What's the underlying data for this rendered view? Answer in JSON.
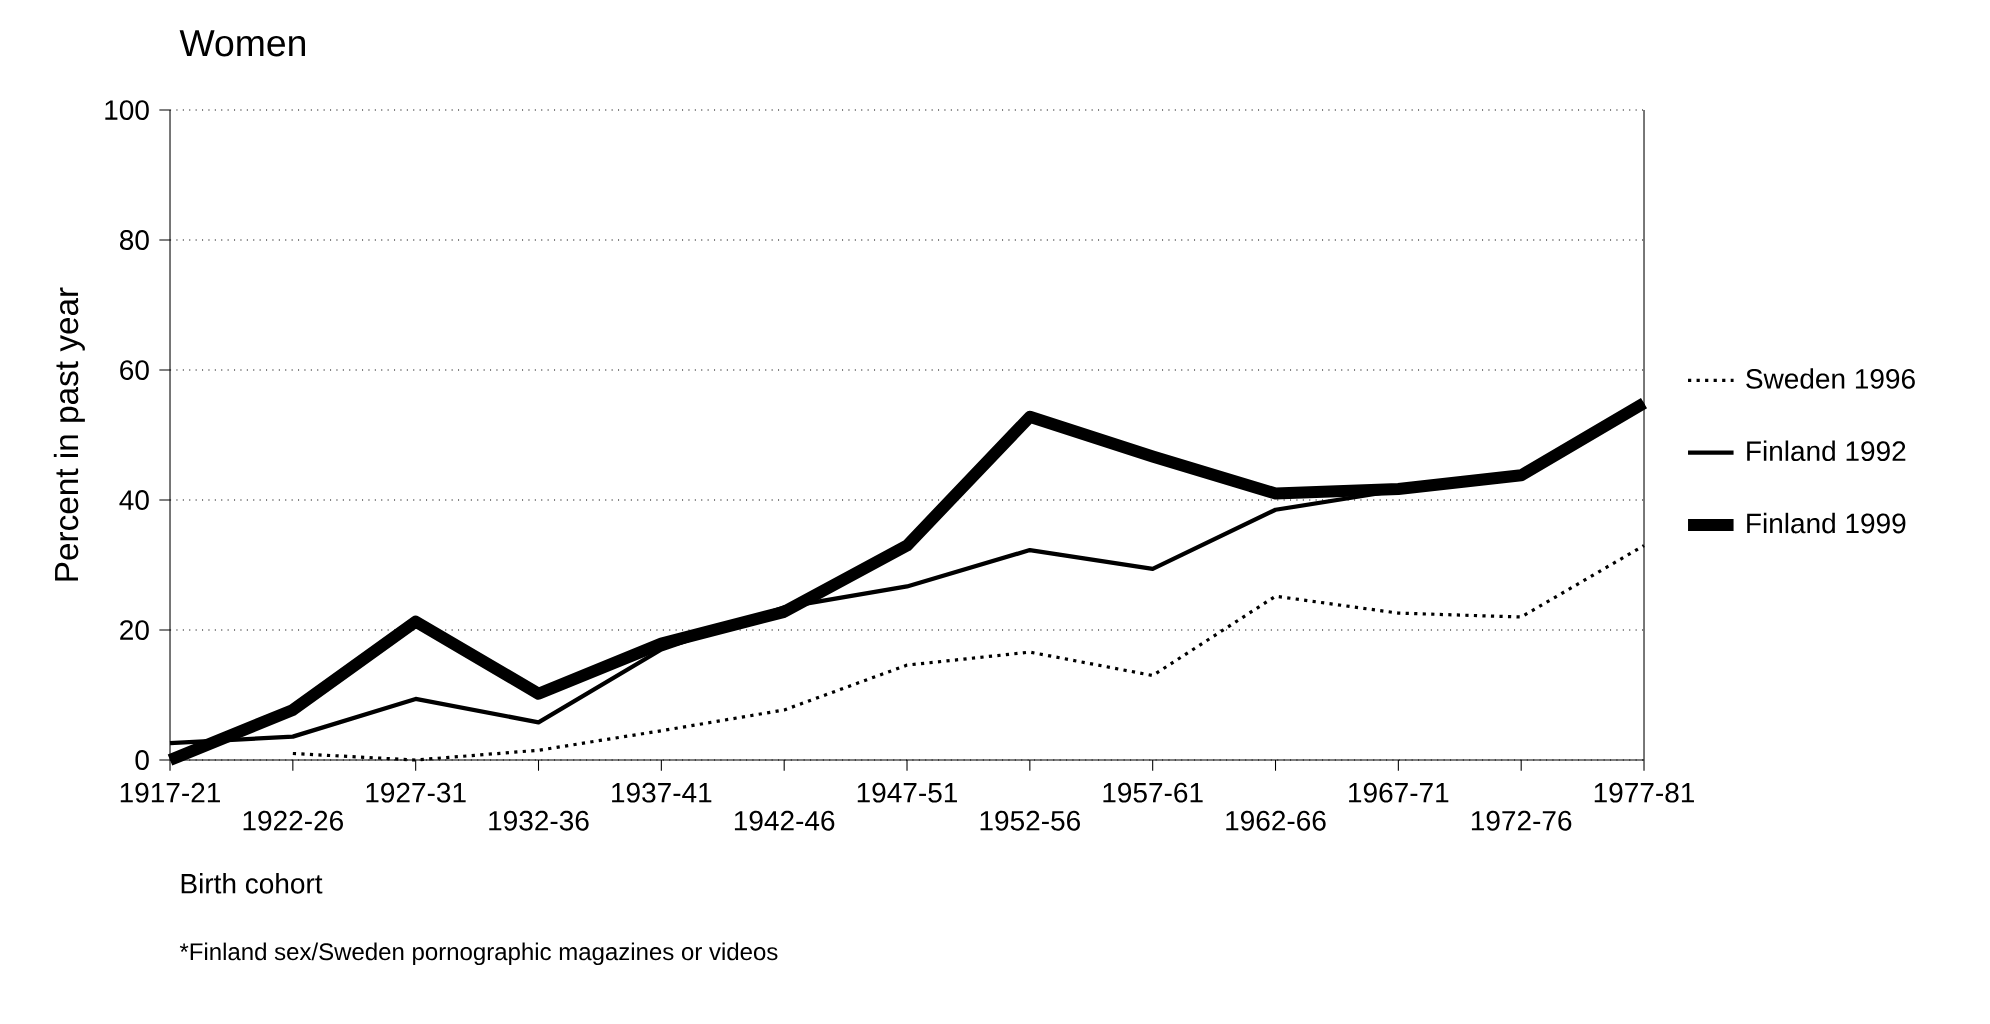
{
  "chart_data": {
    "type": "line",
    "title": "Women",
    "xlabel": "Birth cohort",
    "ylabel": "Percent in past year",
    "categories": [
      "1917-21",
      "1922-26",
      "1927-31",
      "1932-36",
      "1937-41",
      "1942-46",
      "1947-51",
      "1952-56",
      "1957-61",
      "1962-66",
      "1967-71",
      "1972-76",
      "1977-81"
    ],
    "series": [
      {
        "name": "Sweden 1996",
        "color": "#000000",
        "line_style": "dotted",
        "values": [
          null,
          1,
          0,
          1.5,
          4.5,
          7.7,
          14.6,
          16.6,
          13,
          25.2,
          22.6,
          22,
          33
        ]
      },
      {
        "name": "Finland 1992",
        "color": "#000000",
        "line_style": "solid",
        "values": [
          2.6,
          3.6,
          9.4,
          5.8,
          17,
          23.5,
          26.7,
          32.3,
          29.4,
          38.5,
          41.5,
          43.6,
          54.9
        ]
      },
      {
        "name": "Finland 1999",
        "color": "#000000",
        "line_style": "solid",
        "values": [
          0,
          7.7,
          21.3,
          10.2,
          17.9,
          22.8,
          33,
          52.8,
          46.7,
          41,
          41.7,
          43.8,
          54.9
        ]
      }
    ],
    "ylim": [
      0,
      100
    ],
    "yticks": [
      0,
      20,
      40,
      60,
      80,
      100
    ],
    "grid": "y",
    "legend": "right",
    "marker": "none",
    "annotations": [
      "*Finland sex/Sweden pornographic magazines or videos"
    ]
  }
}
